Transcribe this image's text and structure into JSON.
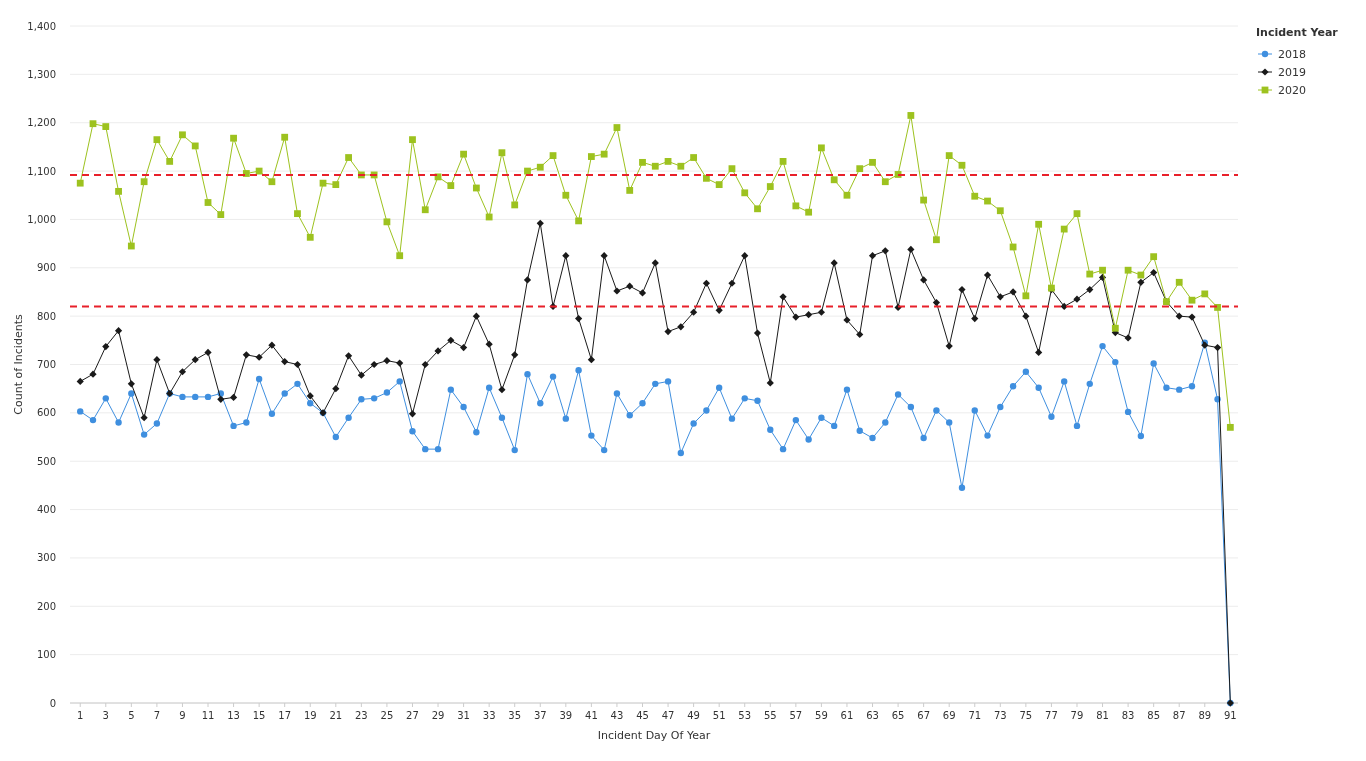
{
  "chart_data": {
    "type": "line",
    "xlabel": "Incident Day Of Year",
    "ylabel": "Count of Incidents",
    "legend_title": "Incident Year",
    "legend": "top right",
    "grid": "y",
    "x": [
      1,
      2,
      3,
      4,
      5,
      6,
      7,
      8,
      9,
      10,
      11,
      12,
      13,
      14,
      15,
      16,
      17,
      18,
      19,
      20,
      21,
      22,
      23,
      24,
      25,
      26,
      27,
      28,
      29,
      30,
      31,
      32,
      33,
      34,
      35,
      36,
      37,
      38,
      39,
      40,
      41,
      42,
      43,
      44,
      45,
      46,
      47,
      48,
      49,
      50,
      51,
      52,
      53,
      54,
      55,
      56,
      57,
      58,
      59,
      60,
      61,
      62,
      63,
      64,
      65,
      66,
      67,
      68,
      69,
      70,
      71,
      72,
      73,
      74,
      75,
      76,
      77,
      78,
      79,
      80,
      81,
      82,
      83,
      84,
      85,
      86,
      87,
      88,
      89,
      90,
      91
    ],
    "xlim": [
      0.2,
      91.6
    ],
    "xticks": [
      1,
      3,
      5,
      7,
      9,
      11,
      13,
      15,
      17,
      19,
      21,
      23,
      25,
      27,
      29,
      31,
      33,
      35,
      37,
      39,
      41,
      43,
      45,
      47,
      49,
      51,
      53,
      55,
      57,
      59,
      61,
      63,
      65,
      67,
      69,
      71,
      73,
      75,
      77,
      79,
      81,
      83,
      85,
      87,
      89,
      91
    ],
    "ylim": [
      0,
      1400
    ],
    "yticks": [
      0,
      100,
      200,
      300,
      400,
      500,
      600,
      700,
      800,
      900,
      {
        "value": 1000,
        "label": "1,000"
      },
      {
        "value": 1100,
        "label": "1,100"
      },
      {
        "value": 1200,
        "label": "1,200"
      },
      {
        "value": 1300,
        "label": "1,300"
      },
      {
        "value": 1400,
        "label": "1,400"
      }
    ],
    "ref_lines": [
      {
        "axis": "y",
        "value": 1092,
        "color": "#e8202a",
        "line_style": "dashed"
      },
      {
        "axis": "y",
        "value": 820,
        "color": "#e8202a",
        "line_style": "dashed"
      }
    ],
    "series": [
      {
        "name": "2018",
        "color": "#3f8fdf",
        "marker": "circle",
        "values": [
          603,
          585,
          630,
          580,
          640,
          555,
          578,
          640,
          633,
          633,
          633,
          640,
          573,
          580,
          670,
          598,
          640,
          660,
          620,
          600,
          550,
          590,
          628,
          630,
          642,
          665,
          562,
          525,
          525,
          648,
          612,
          560,
          652,
          590,
          523,
          680,
          620,
          675,
          588,
          688,
          553,
          523,
          640,
          595,
          620,
          660,
          665,
          517,
          578,
          605,
          652,
          588,
          630,
          625,
          565,
          525,
          585,
          545,
          590,
          573,
          648,
          563,
          548,
          580,
          638,
          612,
          548,
          605,
          580,
          445,
          605,
          553,
          612,
          655,
          685,
          652,
          592,
          665,
          573,
          660,
          738,
          705,
          602,
          552,
          702,
          652,
          648,
          655,
          745,
          628,
          0
        ]
      },
      {
        "name": "2019",
        "color": "#1a1a1a",
        "marker": "diamond",
        "values": [
          665,
          680,
          737,
          770,
          660,
          590,
          710,
          640,
          685,
          710,
          725,
          628,
          632,
          720,
          715,
          740,
          706,
          700,
          635,
          600,
          650,
          718,
          678,
          700,
          708,
          703,
          598,
          700,
          728,
          750,
          735,
          800,
          742,
          648,
          720,
          875,
          992,
          820,
          925,
          795,
          710,
          925,
          852,
          862,
          848,
          910,
          768,
          778,
          808,
          868,
          812,
          868,
          925,
          765,
          662,
          840,
          798,
          803,
          808,
          910,
          792,
          762,
          925,
          935,
          818,
          938,
          875,
          828,
          738,
          855,
          795,
          885,
          840,
          850,
          800,
          725,
          855,
          820,
          835,
          855,
          880,
          766,
          755,
          870,
          890,
          830,
          800,
          798,
          740,
          735,
          0
        ]
      },
      {
        "name": "2020",
        "color": "#9dc21f",
        "marker": "square",
        "values": [
          1075,
          1198,
          1192,
          1058,
          945,
          1078,
          1165,
          1120,
          1175,
          1152,
          1035,
          1010,
          1168,
          1095,
          1100,
          1078,
          1170,
          1012,
          963,
          1075,
          1072,
          1128,
          1092,
          1092,
          995,
          925,
          1165,
          1020,
          1088,
          1070,
          1135,
          1065,
          1005,
          1138,
          1030,
          1100,
          1108,
          1132,
          1050,
          997,
          1130,
          1135,
          1190,
          1060,
          1118,
          1110,
          1120,
          1110,
          1128,
          1085,
          1072,
          1105,
          1055,
          1022,
          1068,
          1120,
          1028,
          1015,
          1148,
          1082,
          1050,
          1105,
          1118,
          1078,
          1093,
          1215,
          1040,
          958,
          1132,
          1112,
          1048,
          1038,
          1018,
          943,
          842,
          990,
          858,
          980,
          1012,
          887,
          895,
          775,
          895,
          885,
          923,
          830,
          870,
          833,
          846,
          818,
          570
        ]
      }
    ]
  }
}
